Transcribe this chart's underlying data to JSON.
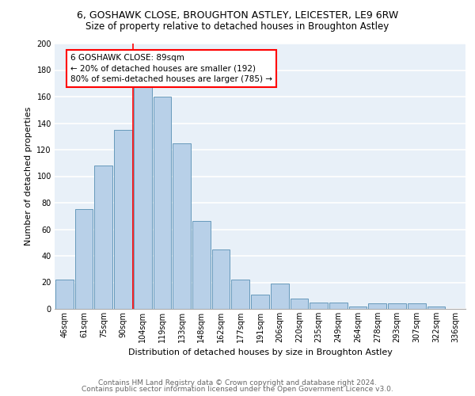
{
  "title1": "6, GOSHAWK CLOSE, BROUGHTON ASTLEY, LEICESTER, LE9 6RW",
  "title2": "Size of property relative to detached houses in Broughton Astley",
  "xlabel": "Distribution of detached houses by size in Broughton Astley",
  "ylabel": "Number of detached properties",
  "categories": [
    "46sqm",
    "61sqm",
    "75sqm",
    "90sqm",
    "104sqm",
    "119sqm",
    "133sqm",
    "148sqm",
    "162sqm",
    "177sqm",
    "191sqm",
    "206sqm",
    "220sqm",
    "235sqm",
    "249sqm",
    "264sqm",
    "278sqm",
    "293sqm",
    "307sqm",
    "322sqm",
    "336sqm"
  ],
  "values": [
    22,
    75,
    108,
    135,
    168,
    160,
    125,
    66,
    45,
    22,
    11,
    19,
    8,
    5,
    5,
    2,
    4,
    4,
    4,
    2,
    0
  ],
  "bar_color": "#b8d0e8",
  "bar_edge_color": "#6699bb",
  "vline_x_index": 3,
  "vline_label": "6 GOSHAWK CLOSE: 89sqm",
  "annotation_line1": "← 20% of detached houses are smaller (192)",
  "annotation_line2": "80% of semi-detached houses are larger (785) →",
  "annotation_box_color": "white",
  "annotation_box_edge_color": "red",
  "vline_color": "red",
  "footnote1": "Contains HM Land Registry data © Crown copyright and database right 2024.",
  "footnote2": "Contains public sector information licensed under the Open Government Licence v3.0.",
  "ylim": [
    0,
    200
  ],
  "yticks": [
    0,
    20,
    40,
    60,
    80,
    100,
    120,
    140,
    160,
    180,
    200
  ],
  "bg_color": "#e8f0f8",
  "grid_color": "white",
  "title1_fontsize": 9,
  "title2_fontsize": 8.5,
  "axis_label_fontsize": 8,
  "tick_fontsize": 7,
  "annotation_fontsize": 7.5,
  "footnote_fontsize": 6.5
}
